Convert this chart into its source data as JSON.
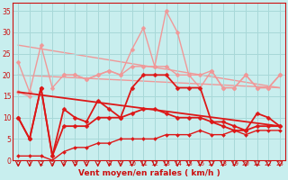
{
  "xlabel": "Vent moyen/en rafales ( km/h )",
  "bg_color": "#c8eeee",
  "grid_color": "#a8d8d8",
  "xlim": [
    -0.5,
    23.5
  ],
  "ylim": [
    0,
    37
  ],
  "yticks": [
    0,
    5,
    10,
    15,
    20,
    25,
    30,
    35
  ],
  "xticks": [
    0,
    1,
    2,
    3,
    4,
    5,
    6,
    7,
    8,
    9,
    10,
    11,
    12,
    13,
    14,
    15,
    16,
    17,
    18,
    19,
    20,
    21,
    22,
    23
  ],
  "lines": [
    {
      "name": "gust_light_pink",
      "x": [
        0,
        1,
        2,
        3,
        4,
        5,
        6,
        7,
        8,
        9,
        10,
        11,
        12,
        13,
        14,
        15,
        16,
        17,
        18,
        19,
        20,
        21,
        22,
        23
      ],
      "y": [
        23,
        16,
        27,
        17,
        20,
        20,
        19,
        20,
        21,
        20,
        26,
        31,
        22,
        35,
        30,
        20,
        17,
        21,
        17,
        17,
        20,
        17,
        17,
        20
      ],
      "color": "#f09898",
      "lw": 1.0,
      "marker": "D",
      "ms": 2.5,
      "zorder": 2
    },
    {
      "name": "trend_light_pink_upper",
      "x": [
        0,
        23
      ],
      "y": [
        27,
        17
      ],
      "color": "#f09898",
      "lw": 1.0,
      "marker": null,
      "ms": 0,
      "zorder": 1
    },
    {
      "name": "flat_pink_20",
      "x": [
        0,
        1,
        2,
        3,
        4,
        5,
        6,
        7,
        8,
        9,
        10,
        11,
        12,
        13,
        14,
        15,
        16,
        17,
        18,
        19,
        20,
        21,
        22,
        23
      ],
      "y": [
        16,
        15,
        null,
        null,
        20,
        20,
        19,
        20,
        21,
        20,
        22,
        22,
        22,
        22,
        20,
        20,
        20,
        21,
        17,
        17,
        20,
        17,
        17,
        20
      ],
      "color": "#f09898",
      "lw": 1.0,
      "marker": "D",
      "ms": 2.5,
      "zorder": 2
    },
    {
      "name": "trend_light_pink_lower",
      "x": [
        0,
        23
      ],
      "y": [
        20,
        17
      ],
      "color": "#f09898",
      "lw": 1.0,
      "marker": null,
      "ms": 0,
      "zorder": 1
    },
    {
      "name": "dark_red_gust",
      "x": [
        0,
        1,
        2,
        3,
        4,
        5,
        6,
        7,
        8,
        9,
        10,
        11,
        12,
        13,
        14,
        15,
        16,
        17,
        18,
        19,
        20,
        21,
        22,
        23
      ],
      "y": [
        10,
        5,
        17,
        1,
        12,
        10,
        9,
        14,
        12,
        10,
        17,
        20,
        20,
        20,
        17,
        17,
        17,
        9,
        9,
        8,
        7,
        11,
        10,
        8
      ],
      "color": "#dd1818",
      "lw": 1.3,
      "marker": "D",
      "ms": 2.5,
      "zorder": 4
    },
    {
      "name": "dark_red_mean",
      "x": [
        0,
        1,
        2,
        3,
        4,
        5,
        6,
        7,
        8,
        9,
        10,
        11,
        12,
        13,
        14,
        15,
        16,
        17,
        18,
        19,
        20,
        21,
        22,
        23
      ],
      "y": [
        10,
        5,
        17,
        1,
        8,
        8,
        8,
        10,
        10,
        10,
        11,
        12,
        12,
        11,
        10,
        10,
        10,
        9,
        8,
        7,
        7,
        8,
        8,
        8
      ],
      "color": "#dd1818",
      "lw": 1.3,
      "marker": "D",
      "ms": 2.5,
      "zorder": 4
    },
    {
      "name": "dark_red_trend",
      "x": [
        0,
        23
      ],
      "y": [
        16,
        8
      ],
      "color": "#dd1818",
      "lw": 1.3,
      "marker": null,
      "ms": 0,
      "zorder": 3
    },
    {
      "name": "dark_red_bottom",
      "x": [
        0,
        1,
        2,
        3,
        4,
        5,
        6,
        7,
        8,
        9,
        10,
        11,
        12,
        13,
        14,
        15,
        16,
        17,
        18,
        19,
        20,
        21,
        22,
        23
      ],
      "y": [
        1,
        1,
        1,
        0,
        2,
        3,
        3,
        4,
        4,
        5,
        5,
        5,
        5,
        6,
        6,
        6,
        7,
        6,
        6,
        7,
        6,
        7,
        7,
        7
      ],
      "color": "#dd1818",
      "lw": 1.0,
      "marker": "D",
      "ms": 2.0,
      "zorder": 4
    }
  ]
}
